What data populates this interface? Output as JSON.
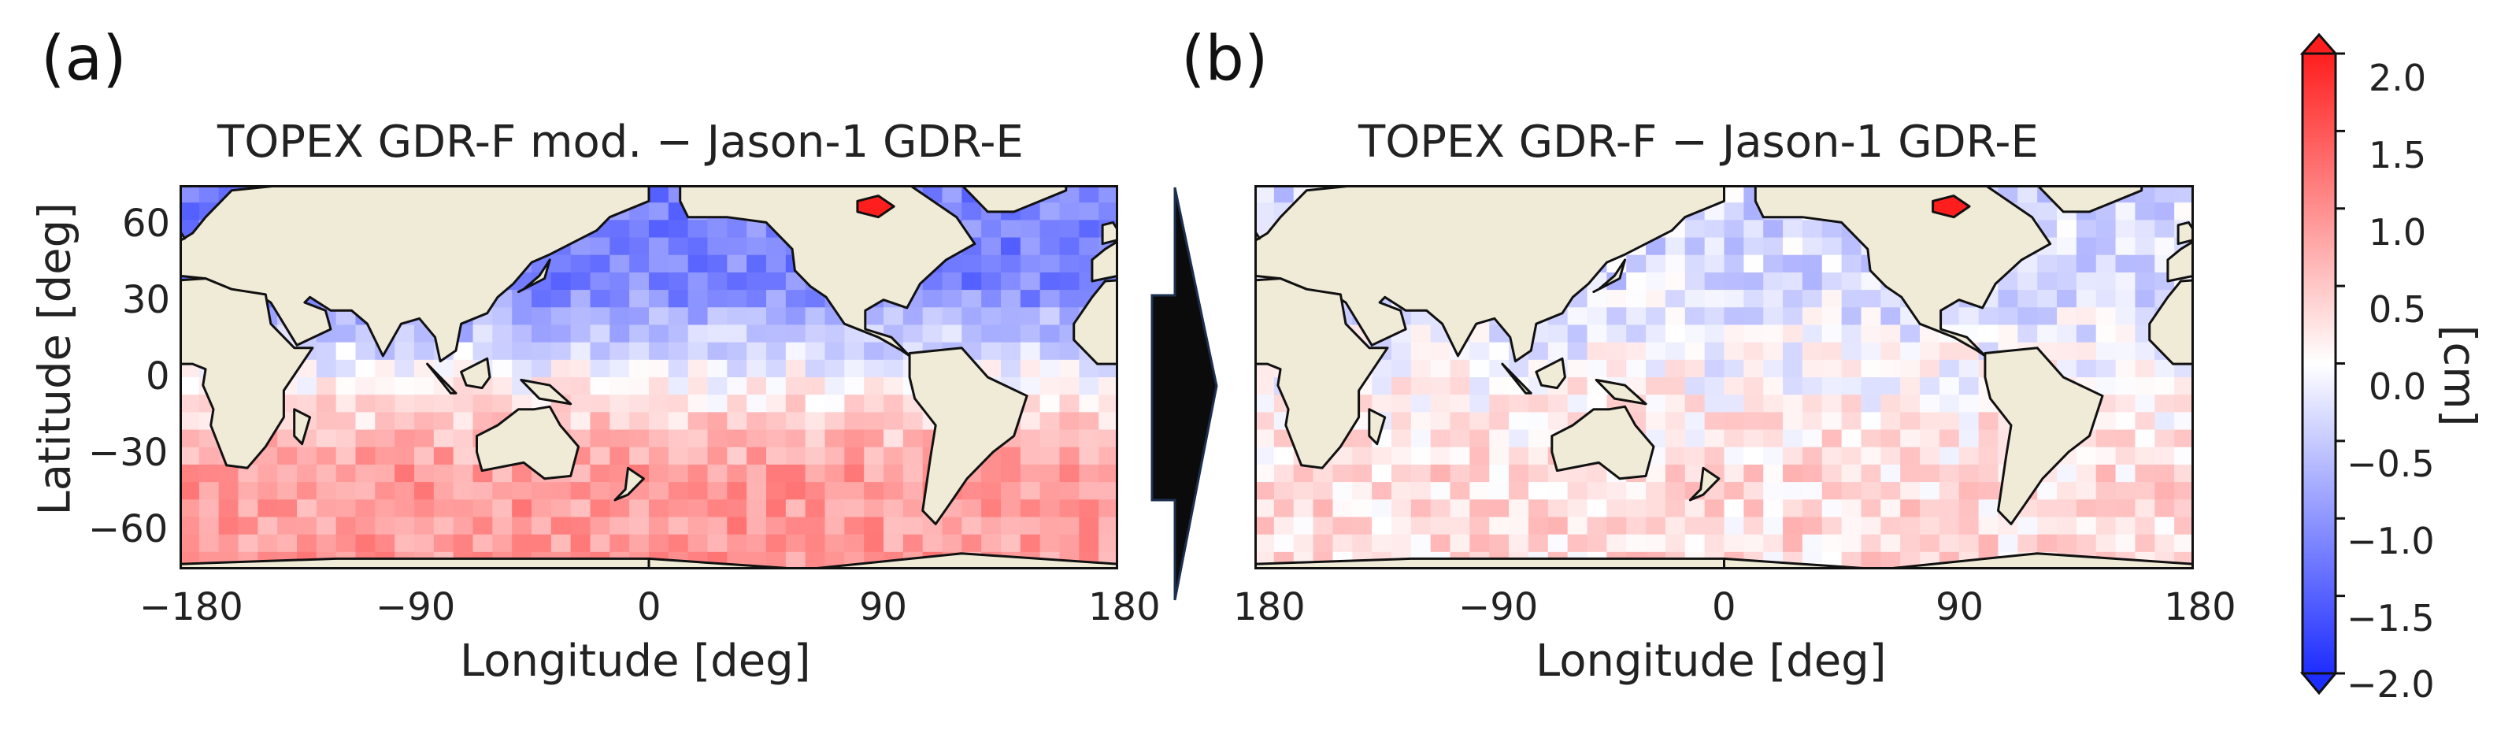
{
  "chart_data": [
    {
      "type": "heatmap",
      "panel_label": "(a)",
      "title": "TOPEX GDR-F mod. − Jason-1 GDR-E",
      "xlabel": "Longitude [deg]",
      "ylabel": "Latitude [deg]",
      "x_ticks": [
        "−180",
        "−90",
        "0",
        "90",
        "180"
      ],
      "y_ticks": [
        "60",
        "30",
        "0",
        "−30",
        "−60"
      ],
      "xlim": [
        -180,
        180
      ],
      "ylim": [
        -72,
        72
      ],
      "pattern": {
        "north_mean": -1.2,
        "south_mean": 0.9,
        "noise": 0.35,
        "colormap": "bwr"
      }
    },
    {
      "type": "heatmap",
      "panel_label": "(b)",
      "title": "TOPEX GDR-F − Jason-1 GDR-E",
      "xlabel": "Longitude [deg]",
      "ylabel": "",
      "x_ticks": [
        "180",
        "−90",
        "0",
        "90",
        "180"
      ],
      "xlim": [
        -180,
        180
      ],
      "ylim": [
        -72,
        72
      ],
      "pattern": {
        "north_mean": -0.35,
        "south_mean": 0.3,
        "noise": 0.4,
        "colormap": "bwr"
      }
    }
  ],
  "colorbar": {
    "ticks": [
      "2.0",
      "1.5",
      "1.0",
      "0.5",
      "0.0",
      "−0.5",
      "−1.0",
      "−1.5",
      "−2.0"
    ],
    "range": [
      -2.0,
      2.0
    ],
    "label": "[cm]",
    "colors": {
      "low": "#1e2dff",
      "mid": "#ffffff",
      "high": "#ff1e1e"
    }
  },
  "land_color": "#efebd7",
  "arrow_color": "#0b0b0b"
}
